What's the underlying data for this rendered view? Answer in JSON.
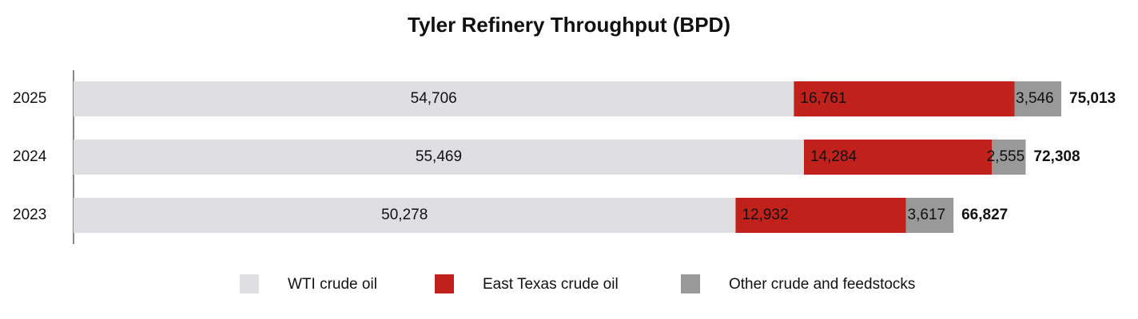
{
  "chart_data": {
    "type": "stacked-bar-horizontal",
    "title": "Tyler Refinery Throughput (BPD)",
    "categories": [
      "2025",
      "2024",
      "2023"
    ],
    "series": [
      {
        "name": "WTI crude oil",
        "color": "#dfdfe3",
        "values": [
          54706,
          55469,
          50278
        ],
        "value_labels": [
          "54,706",
          "55,469",
          "50,278"
        ]
      },
      {
        "name": "East Texas crude oil",
        "color": "#c0211a",
        "values": [
          16761,
          14284,
          12932
        ],
        "value_labels": [
          "16,761",
          "14,284",
          "12,932"
        ]
      },
      {
        "name": "Other crude and feedstocks",
        "color": "#999999",
        "values": [
          3546,
          2555,
          3617
        ],
        "value_labels": [
          "3,546",
          "2,555",
          "3,617"
        ]
      }
    ],
    "totals": [
      75013,
      72308,
      66827
    ],
    "total_labels": [
      "75,013",
      "72,308",
      "66,827"
    ]
  }
}
